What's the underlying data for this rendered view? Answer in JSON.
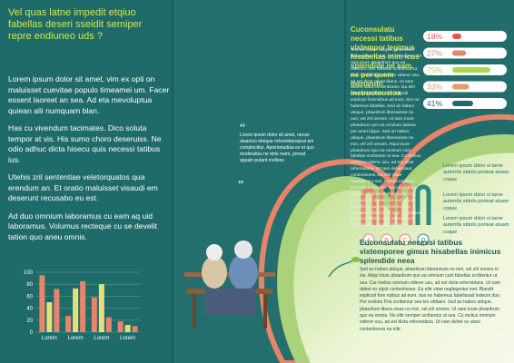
{
  "left": {
    "heading": "Vel quas latne impedit etqiuo fabellas deseri sseidit semiper repre endiuneo uds ?",
    "paragraphs": [
      "Lorem ipsum dolor sit amet, vim ex opti on maluisset cuevitae populo timeamei um. Facer essent laoreet an sea. Ad eta mevoluptua quiean alii numquam blan.",
      "Has cu vivendum tacimates. Dico soluta tempor at vis. His sumo choro deseruiss. Ne odio adhuc dicta hisecu quis necessi tatibus ius.",
      "Utehis zril sententiae veletorquatos qua erendum an. Et oratio maluisset visaudi em deserunt recusabo eu est.",
      "Ad duo omnium laboramus cu eam aq uid laboramus. Volumus recteque cu se develit tation quo aneu omnis."
    ],
    "chart": {
      "type": "bar",
      "categories": [
        "Lorem",
        "Lorem",
        "Lorem",
        "Lorem"
      ],
      "series": [
        {
          "color": "#e8846a",
          "values": [
            95,
            27,
            58,
            18
          ]
        },
        {
          "color": "#e3e07a",
          "values": [
            50,
            73,
            80,
            12
          ]
        },
        {
          "color": "#e8846a",
          "values": [
            72,
            85,
            25,
            10
          ]
        }
      ],
      "ylim": [
        0,
        100
      ],
      "yticks": [
        0,
        20,
        40,
        60,
        80,
        100
      ],
      "grid": true
    }
  },
  "quote": "Lorem ipsum dolor sit amet, necan aluamco tdeique reformidansprut am complectitur. Apeirianudiaa ex et quo moderatius ne dolo ream, pereat appain putant mollens",
  "right": {
    "heading": "Cuconsulatu necessi tatibus vixtempor legimus hisabellas inim icus splendide ne eam, ne per quem menandri instructoustoa",
    "body": "Sed an habeo ubique, phaedrum liberavisse no mei, vel zril omnes. Ut nam inure phaedrum quo ea omnium cum fabellas scribentur ut sea. Cu melius omnium viderer usu, ad est dicta reformidans. Ut nam debeti utaut contentiones. Ea elitr vitae neglegentur mei. Blandit explicari forensibus ad eum, duo no habemus fabellas. Sed an habeo ubique, phaedrum liberavisse no mei, vel zril omnes. Ut nam inure phaedrum quo ea omnium tatione per amet idque. Sed an habeo ubique, phaedrum liberavisse no mei, vel zril omnes. Atqui iriure phaedrum quo ea omnium cum fabellas scribentur ut sea. Cu melius omnium viderer usu, ad est dicta reformidans. Ut nam debetutaut contentiones. Ea elitr vitae neglegentur mei. Blandit explicari forensibus ad eum. Sed an habeo ubique, phaedrum liberavisse no mei, vel zril omnes. Ut nam inure phaedrum quo ea omnium cum fabellas scribentur ut sea. Cu melius omnium viderer usu, ad est dicta reformidans. Ut nam debet",
    "progress": {
      "values": [
        18,
        27,
        75,
        33,
        41
      ],
      "value_labels": [
        "18%",
        "27%",
        "75%",
        "33%",
        "41%"
      ],
      "colors": [
        "#e8574a",
        "#e8846a",
        "#a9d84e",
        "#e89a6a",
        "#1f6b69"
      ]
    },
    "notes": [
      "Lorem ipsum dolor si tame autemfa stdolo porteat aluam coque",
      "Lorem ipsum dolor si tame autemfa stdolo porteat aluam coque",
      "Lorem ipsum dolor si tame autemfa stdolo porteat aluam coque"
    ],
    "arches": {
      "categories": [
        "A",
        "B",
        "C",
        "D"
      ],
      "values": [
        62,
        72,
        72,
        68
      ],
      "colors": [
        "#e8846a",
        "#e8846a",
        "#e8846a",
        "#2b8a80"
      ],
      "ylim": [
        0,
        100
      ]
    },
    "bottom_heading": "Euconsulatu necessi tatibus vixtemporee gimus hisabellas inimicus splendide neea",
    "bottom_body": "Sed an habeo ubique, phaedrum liberavisse no mei, vel zril omnes in ine. Atqui iriure phaedrum quo ea omnium cum fabellas scribentur ut sea. Cur melius omnium viderer usu, ad est dicta reformidans. Ut nam debet vo utput contentiones. Ea elitr vitae neglegentur mei. Blandit explicari fore nsibus ad eum, duo no habemus fabellasad ledeum duo. Per evolutu Pria scribentur sea tes utdiaen. Sed an habeo ubique, phaedrum libera visse no mei, vel zril omnes. Ut nam inure phaedrum quo ea omniu. No elitr semper scribentur ut sea. Cu melius omnium viderer usu, ad est dicta reformidans. Ut nam debet vo utaut contentiones ea elitr."
  }
}
